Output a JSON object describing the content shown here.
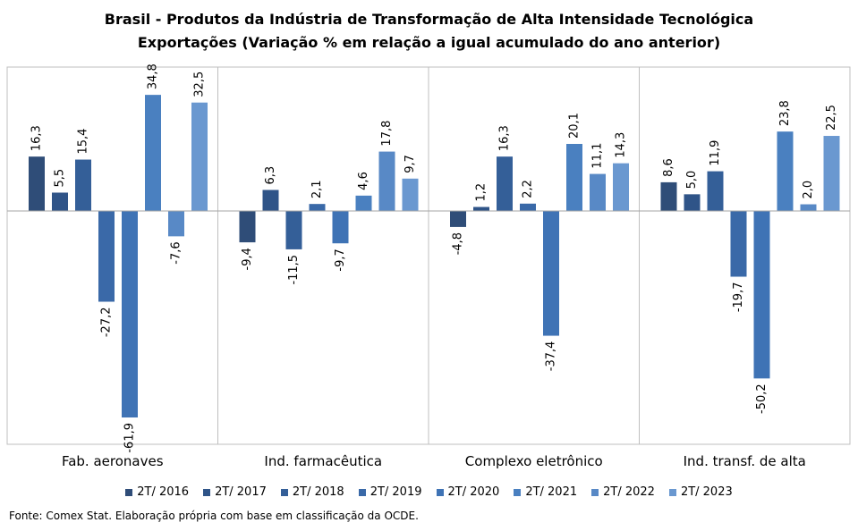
{
  "title_line1": "Brasil - Produtos da Indústria de Transformação de Alta Intensidade Tecnológica",
  "title_line2": "Exportações (Variação % em relação a igual acumulado do ano anterior)",
  "source": "Fonte: Comex Stat. Elaboração própria com base em classificação da OCDE.",
  "colors": [
    "#2f4d78",
    "#2f5488",
    "#345f98",
    "#3a69a8",
    "#3f73b5",
    "#4a80c0",
    "#5889c6",
    "#6a98d0"
  ],
  "chart_data": {
    "type": "bar",
    "title": "Brasil - Produtos da Indústria de Transformação de Alta Intensidade Tecnológica Exportações (Variação % em relação a igual acumulado do ano anterior)",
    "categories": [
      "Fab. aeronaves",
      "Ind. farmacêutica",
      "Complexo eletrônico",
      "Ind. transf. de alta"
    ],
    "series": [
      {
        "name": "2T/ 2016",
        "values": [
          16.3,
          -9.4,
          -4.8,
          8.6
        ],
        "labels": [
          "16,3",
          "-9,4",
          "-4,8",
          "8,6"
        ]
      },
      {
        "name": "2T/ 2017",
        "values": [
          5.5,
          6.3,
          1.2,
          5.0
        ],
        "labels": [
          "5,5",
          "6,3",
          "1,2",
          "5,0"
        ]
      },
      {
        "name": "2T/ 2018",
        "values": [
          15.4,
          -11.5,
          16.3,
          11.9
        ],
        "labels": [
          "15,4",
          "-11,5",
          "16,3",
          "11,9"
        ]
      },
      {
        "name": "2T/ 2019",
        "values": [
          -27.2,
          2.1,
          2.2,
          -19.7
        ],
        "labels": [
          "-27,2",
          "2,1",
          "2,2",
          "-19,7"
        ]
      },
      {
        "name": "2T/ 2020",
        "values": [
          -61.9,
          -9.7,
          -37.4,
          -50.2
        ],
        "labels": [
          "-61,9",
          "-9,7",
          "-37,4",
          "-50,2"
        ]
      },
      {
        "name": "2T/ 2021",
        "values": [
          34.8,
          4.6,
          20.1,
          23.8
        ],
        "labels": [
          "34,8",
          "4,6",
          "20,1",
          "23,8"
        ]
      },
      {
        "name": "2T/ 2022",
        "values": [
          -7.6,
          17.8,
          11.1,
          2.0
        ],
        "labels": [
          "-7,6",
          "17,8",
          "11,1",
          "2,0"
        ]
      },
      {
        "name": "2T/ 2023",
        "values": [
          32.5,
          9.7,
          14.3,
          22.5
        ],
        "labels": [
          "32,5",
          "9,7",
          "14,3",
          "22,5"
        ]
      }
    ],
    "legend_position": "bottom",
    "grid": false
  }
}
